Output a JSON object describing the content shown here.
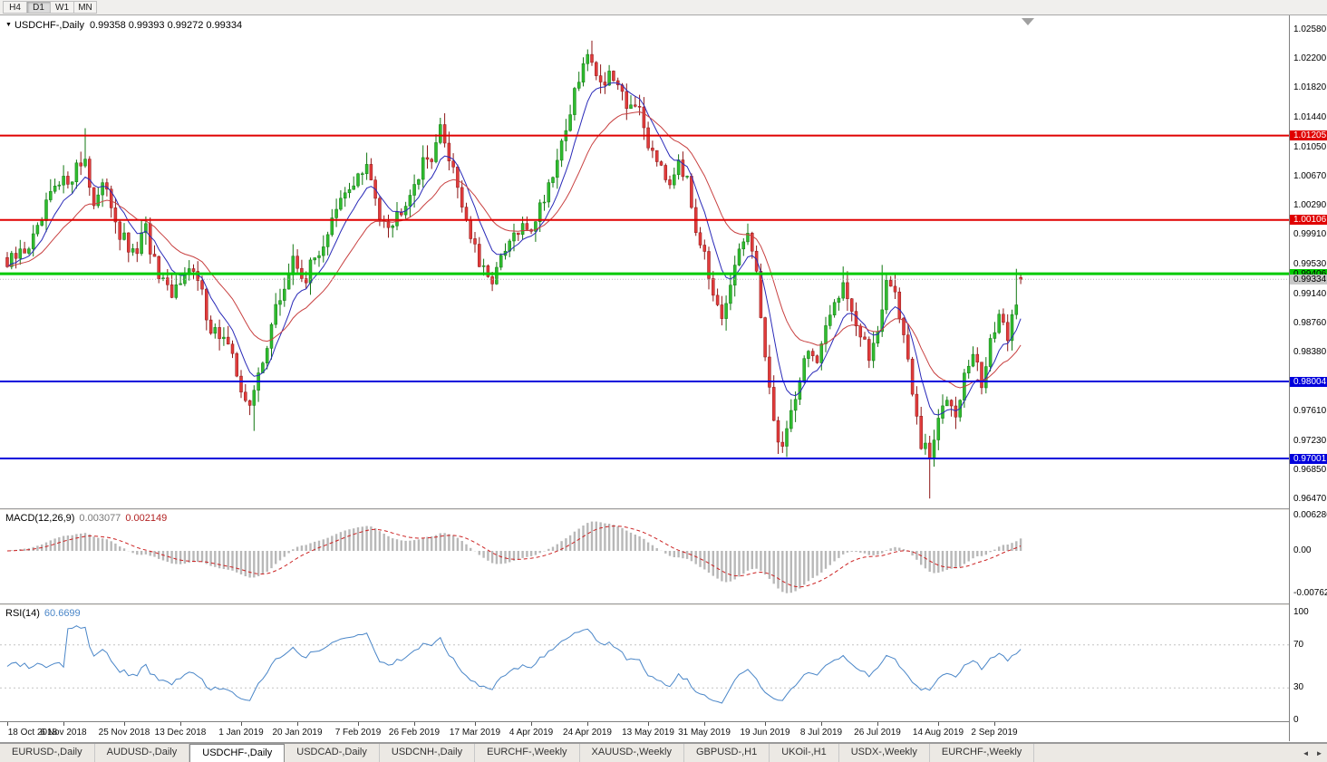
{
  "toolbar": {
    "timeframes": [
      {
        "label": "H4",
        "active": false
      },
      {
        "label": "D1",
        "active": true
      },
      {
        "label": "W1",
        "active": false
      },
      {
        "label": "MN",
        "active": false
      }
    ]
  },
  "chart": {
    "collapser": "▼",
    "symbol_title": "USDCHF-,Daily",
    "ohlc_text": "0.99358 0.99393 0.99272 0.99334"
  },
  "main_panel": {
    "y_ticks": [
      "1.02580",
      "1.02200",
      "1.01820",
      "1.01440",
      "1.01050",
      "1.00670",
      "1.00290",
      "0.99910",
      "0.99530",
      "0.99140",
      "0.98760",
      "0.98380",
      "0.97610",
      "0.97230",
      "0.96850",
      "0.96470"
    ],
    "hlines": [
      {
        "price": 1.01205,
        "color": "#e00000",
        "width": 2,
        "badge_bg": "#e00000",
        "badge_fg": "#ffffff",
        "label": "1.01205"
      },
      {
        "price": 1.00106,
        "color": "#e00000",
        "width": 2,
        "badge_bg": "#e00000",
        "badge_fg": "#ffffff",
        "label": "1.00106"
      },
      {
        "price": 0.99406,
        "color": "#00ca00",
        "width": 3,
        "badge_bg": "#00ca00",
        "badge_fg": "#000000",
        "label": "0.99406"
      },
      {
        "price": 0.99334,
        "color": "#b4b4b4",
        "width": 1,
        "dash": "1,2",
        "badge_bg": "#c8c8c8",
        "badge_fg": "#000000",
        "label": "0.99334"
      },
      {
        "price": 0.98004,
        "color": "#0000dc",
        "width": 2,
        "badge_bg": "#0000dc",
        "badge_fg": "#ffffff",
        "label": "0.98004"
      },
      {
        "price": 0.97001,
        "color": "#0000dc",
        "width": 2,
        "badge_bg": "#0000dc",
        "badge_fg": "#ffffff",
        "label": "0.97001"
      }
    ]
  },
  "macd_panel": {
    "name": "MACD(12,26,9)",
    "value_main": "0.003077",
    "value_signal": "0.002149",
    "y_ticks": [
      {
        "label": "0.006286",
        "v": 0.006286
      },
      {
        "label": "0.00",
        "v": 0
      },
      {
        "label": "-0.00762",
        "v": -0.00762
      }
    ]
  },
  "rsi_panel": {
    "name": "RSI(14)",
    "value": "60.6699",
    "levels": [
      70,
      30
    ],
    "y_ticks": [
      {
        "label": "100",
        "v": 100
      },
      {
        "label": "70",
        "v": 70
      },
      {
        "label": "30",
        "v": 30
      },
      {
        "label": "0",
        "v": 0
      }
    ]
  },
  "date_axis": [
    {
      "i": 0,
      "label": "18 Oct 2018"
    },
    {
      "i": 13,
      "label": "6 Nov 2018"
    },
    {
      "i": 27,
      "label": "25 Nov 2018"
    },
    {
      "i": 40,
      "label": "13 Dec 2018"
    },
    {
      "i": 54,
      "label": "1 Jan 2019"
    },
    {
      "i": 67,
      "label": "20 Jan 2019"
    },
    {
      "i": 81,
      "label": "7 Feb 2019"
    },
    {
      "i": 94,
      "label": "26 Feb 2019"
    },
    {
      "i": 108,
      "label": "17 Mar 2019"
    },
    {
      "i": 121,
      "label": "4 Apr 2019"
    },
    {
      "i": 134,
      "label": "24 Apr 2019"
    },
    {
      "i": 148,
      "label": "13 May 2019"
    },
    {
      "i": 161,
      "label": "31 May 2019"
    },
    {
      "i": 175,
      "label": "19 Jun 2019"
    },
    {
      "i": 188,
      "label": "8 Jul 2019"
    },
    {
      "i": 201,
      "label": "26 Jul 2019"
    },
    {
      "i": 215,
      "label": "14 Aug 2019"
    },
    {
      "i": 228,
      "label": "2 Sep 2019"
    }
  ],
  "tabs": [
    {
      "label": "EURUSD-,Daily",
      "active": false
    },
    {
      "label": "AUDUSD-,Daily",
      "active": false
    },
    {
      "label": "USDCHF-,Daily",
      "active": true
    },
    {
      "label": "USDCAD-,Daily",
      "active": false
    },
    {
      "label": "USDCNH-,Daily",
      "active": false
    },
    {
      "label": "EURCHF-,Weekly",
      "active": false
    },
    {
      "label": "XAUUSD-,Weekly",
      "active": false
    },
    {
      "label": "GBPUSD-,H1",
      "active": false
    },
    {
      "label": "UKOil-,H1",
      "active": false
    },
    {
      "label": "USDX-,Weekly",
      "active": false
    },
    {
      "label": "EURCHF-,Weekly",
      "active": false
    }
  ],
  "tab_arrows": {
    "left": "◄",
    "right": "►"
  },
  "chart_data": {
    "type": "candlestick",
    "symbol": "USDCHF-",
    "timeframe": "Daily",
    "bar_count": 235,
    "last_candle": {
      "open": 0.99358,
      "high": 0.99393,
      "low": 0.99272,
      "close": 0.99334
    },
    "y_range": [
      0.9647,
      1.0258
    ],
    "x_range": [
      "18 Oct 2018",
      "6 Sep 2019"
    ],
    "horizontal_levels": [
      1.01205,
      1.00106,
      0.99406,
      0.98004,
      0.97001
    ],
    "close_path_anchors": [
      [
        0,
        0.995
      ],
      [
        4,
        0.9972
      ],
      [
        7,
        0.9992
      ],
      [
        10,
        1.0042
      ],
      [
        13,
        1.0058
      ],
      [
        16,
        1.0078
      ],
      [
        18,
        1.0092
      ],
      [
        20,
        1.003
      ],
      [
        23,
        1.0056
      ],
      [
        26,
        0.9992
      ],
      [
        29,
        0.9962
      ],
      [
        32,
        0.9996
      ],
      [
        35,
        0.9932
      ],
      [
        38,
        0.9906
      ],
      [
        41,
        0.9952
      ],
      [
        44,
        0.993
      ],
      [
        47,
        0.9872
      ],
      [
        50,
        0.9856
      ],
      [
        53,
        0.9812
      ],
      [
        56,
        0.9762
      ],
      [
        59,
        0.9832
      ],
      [
        62,
        0.9892
      ],
      [
        66,
        0.9956
      ],
      [
        69,
        0.9936
      ],
      [
        73,
        0.9982
      ],
      [
        77,
        1.0032
      ],
      [
        80,
        1.0062
      ],
      [
        83,
        1.0076
      ],
      [
        86,
        1.0022
      ],
      [
        89,
        1.0006
      ],
      [
        92,
        1.004
      ],
      [
        95,
        1.0072
      ],
      [
        98,
        1.0098
      ],
      [
        100,
        1.0126
      ],
      [
        103,
        1.008
      ],
      [
        106,
        1.001
      ],
      [
        109,
        0.995
      ],
      [
        111,
        0.993
      ],
      [
        114,
        0.9955
      ],
      [
        117,
        0.999
      ],
      [
        121,
        1.0002
      ],
      [
        124,
        1.0042
      ],
      [
        127,
        1.0092
      ],
      [
        130,
        1.0152
      ],
      [
        133,
        1.0212
      ],
      [
        135,
        1.0226
      ],
      [
        137,
        1.0186
      ],
      [
        139,
        1.0206
      ],
      [
        141,
        1.0176
      ],
      [
        143,
        1.0156
      ],
      [
        145,
        1.0166
      ],
      [
        148,
        1.0112
      ],
      [
        151,
        1.0086
      ],
      [
        153,
        1.0062
      ],
      [
        155,
        1.0096
      ],
      [
        157,
        1.0056
      ],
      [
        159,
        1.0002
      ],
      [
        161,
        0.9976
      ],
      [
        163,
        0.9906
      ],
      [
        165,
        0.9872
      ],
      [
        167,
        0.9922
      ],
      [
        169,
        0.9972
      ],
      [
        171,
        0.9996
      ],
      [
        173,
        0.9932
      ],
      [
        175,
        0.9842
      ],
      [
        177,
        0.9742
      ],
      [
        179,
        0.9716
      ],
      [
        181,
        0.9762
      ],
      [
        183,
        0.9806
      ],
      [
        185,
        0.9846
      ],
      [
        187,
        0.9822
      ],
      [
        189,
        0.9862
      ],
      [
        191,
        0.9906
      ],
      [
        193,
        0.9932
      ],
      [
        195,
        0.9896
      ],
      [
        197,
        0.9856
      ],
      [
        199,
        0.9832
      ],
      [
        201,
        0.9872
      ],
      [
        203,
        0.9932
      ],
      [
        205,
        0.9916
      ],
      [
        207,
        0.9862
      ],
      [
        209,
        0.9782
      ],
      [
        211,
        0.9716
      ],
      [
        213,
        0.9702
      ],
      [
        215,
        0.9746
      ],
      [
        217,
        0.9786
      ],
      [
        219,
        0.9766
      ],
      [
        221,
        0.9806
      ],
      [
        223,
        0.9836
      ],
      [
        225,
        0.9796
      ],
      [
        227,
        0.9856
      ],
      [
        229,
        0.9876
      ],
      [
        231,
        0.9862
      ],
      [
        233,
        0.9906
      ],
      [
        234,
        0.9933
      ]
    ],
    "wick_extremes": [
      {
        "i": 18,
        "high": 1.013
      },
      {
        "i": 57,
        "low": 0.9736
      },
      {
        "i": 100,
        "high": 1.0136
      },
      {
        "i": 135,
        "high": 1.0244
      },
      {
        "i": 171,
        "high": 1.0006
      },
      {
        "i": 178,
        "low": 0.9706
      },
      {
        "i": 193,
        "high": 0.995
      },
      {
        "i": 202,
        "high": 0.9952
      },
      {
        "i": 213,
        "low": 0.9648
      },
      {
        "i": 233,
        "high": 0.9947
      }
    ],
    "indicators": [
      {
        "name": "MACD",
        "params": [
          12,
          26,
          9
        ],
        "value": 0.003077,
        "signal": 0.002149,
        "panel_range": [
          -0.00762,
          0.006286
        ]
      },
      {
        "name": "RSI",
        "params": [
          14
        ],
        "value": 60.6699,
        "range": [
          0,
          100
        ],
        "levels": [
          70,
          30
        ]
      }
    ],
    "colors": {
      "up": "#2fbc2f",
      "up_border": "#117711",
      "down": "#e13b3b",
      "down_border": "#8c1616",
      "ma_fast": "#2929b8",
      "ma_slow": "#c84040",
      "macd_hist": "#b8b8b8",
      "macd_signal": "#cc2222",
      "rsi_line": "#4a86c8",
      "resistance": "#e00000",
      "support": "#0000dc",
      "pivot": "#00ca00"
    }
  }
}
